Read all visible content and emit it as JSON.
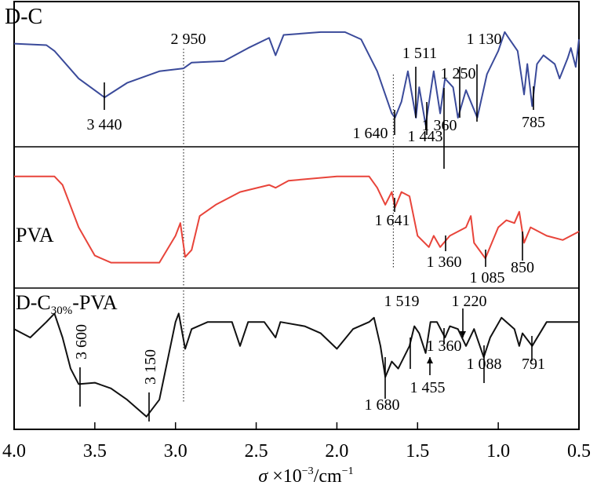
{
  "chart_data": {
    "type": "line",
    "title": "",
    "xlabel": "σ ×10⁻³/cm⁻¹",
    "xlabel_parts": {
      "symbol": "σ",
      "mult": "×10",
      "exp": "−3",
      "unit": "/cm",
      "unit_exp": "−1"
    },
    "ylabel": "",
    "xlim": [
      4.0,
      0.5
    ],
    "xticks": [
      "4.0",
      "3.5",
      "3.0",
      "2.5",
      "2.0",
      "1.5",
      "1.0",
      "0.5"
    ],
    "xtick_values": [
      4.0,
      3.5,
      3.0,
      2.5,
      2.0,
      1.5,
      1.0,
      0.5
    ],
    "ylim": [
      0,
      100
    ],
    "panels": [
      {
        "name": "D-C",
        "label": "D-C",
        "color": "#3a4a9a",
        "x": [
          4.0,
          3.8,
          3.75,
          3.6,
          3.44,
          3.3,
          3.1,
          2.95,
          2.9,
          2.7,
          2.55,
          2.42,
          2.38,
          2.33,
          2.1,
          1.95,
          1.85,
          1.75,
          1.66,
          1.64,
          1.6,
          1.56,
          1.51,
          1.49,
          1.45,
          1.4,
          1.36,
          1.33,
          1.28,
          1.25,
          1.2,
          1.13,
          1.07,
          1.0,
          0.96,
          0.93,
          0.88,
          0.84,
          0.82,
          0.79,
          0.76,
          0.72,
          0.65,
          0.62,
          0.57,
          0.55,
          0.52,
          0.5
        ],
        "y": [
          71,
          70,
          66,
          47,
          34,
          44,
          52,
          54,
          58,
          59,
          68,
          75,
          63,
          77,
          79,
          79,
          74,
          52,
          23,
          20,
          31,
          52,
          20,
          41,
          15,
          52,
          23,
          47,
          41,
          20,
          39,
          20,
          50,
          66,
          79,
          74,
          66,
          36,
          57,
          28,
          57,
          63,
          57,
          47,
          61,
          68,
          55,
          74
        ]
      },
      {
        "name": "PVA",
        "label": "PVA",
        "color": "#e8443a",
        "x": [
          4.0,
          3.75,
          3.7,
          3.6,
          3.5,
          3.4,
          3.1,
          3.0,
          2.97,
          2.94,
          2.9,
          2.85,
          2.75,
          2.6,
          2.42,
          2.38,
          2.3,
          2.0,
          1.8,
          1.75,
          1.7,
          1.66,
          1.64,
          1.6,
          1.55,
          1.5,
          1.43,
          1.4,
          1.36,
          1.3,
          1.2,
          1.17,
          1.15,
          1.08,
          1.0,
          0.95,
          0.9,
          0.87,
          0.84,
          0.8,
          0.7,
          0.6,
          0.5
        ],
        "y": [
          79,
          79,
          73,
          43,
          23,
          18,
          18,
          37,
          46,
          22,
          27,
          51,
          59,
          68,
          73,
          71,
          76,
          79,
          79,
          71,
          59,
          68,
          57,
          68,
          65,
          37,
          29,
          37,
          29,
          37,
          43,
          51,
          32,
          21,
          43,
          48,
          46,
          54,
          32,
          43,
          37,
          34,
          40
        ]
      },
      {
        "name": "D-C30%-PVA",
        "label": "D-C",
        "label_sub": "30%",
        "label_tail": "-PVA",
        "color": "#111111",
        "x": [
          4.0,
          3.9,
          3.8,
          3.75,
          3.7,
          3.65,
          3.6,
          3.5,
          3.4,
          3.3,
          3.18,
          3.1,
          3.0,
          2.98,
          2.94,
          2.9,
          2.8,
          2.7,
          2.65,
          2.6,
          2.55,
          2.45,
          2.38,
          2.35,
          2.2,
          2.1,
          2.0,
          1.9,
          1.8,
          1.77,
          1.73,
          1.7,
          1.66,
          1.62,
          1.55,
          1.52,
          1.49,
          1.45,
          1.42,
          1.38,
          1.33,
          1.3,
          1.25,
          1.2,
          1.15,
          1.09,
          1.05,
          0.98,
          0.9,
          0.87,
          0.85,
          0.79,
          0.7,
          0.5
        ],
        "y": [
          71,
          65,
          76,
          82,
          65,
          43,
          32,
          33,
          29,
          21,
          9,
          21,
          76,
          82,
          57,
          71,
          76,
          76,
          76,
          59,
          76,
          76,
          65,
          76,
          73,
          68,
          57,
          71,
          76,
          79,
          59,
          37,
          48,
          43,
          59,
          73,
          68,
          54,
          76,
          76,
          65,
          73,
          71,
          59,
          71,
          51,
          65,
          79,
          71,
          59,
          68,
          59,
          76,
          76
        ]
      }
    ],
    "annotations": [
      {
        "panel": 0,
        "label": "3 440"
      },
      {
        "panel": 0,
        "label": "2 950"
      },
      {
        "panel": 0,
        "label": "1 640"
      },
      {
        "panel": 0,
        "label": "1 511"
      },
      {
        "panel": 0,
        "label": "1 443"
      },
      {
        "panel": 0,
        "label": "1 360"
      },
      {
        "panel": 0,
        "label": "1 250"
      },
      {
        "panel": 0,
        "label": "1 130"
      },
      {
        "panel": 0,
        "label": "785"
      },
      {
        "panel": 1,
        "label": "1 641"
      },
      {
        "panel": 1,
        "label": "1 360"
      },
      {
        "panel": 1,
        "label": "1 085"
      },
      {
        "panel": 1,
        "label": "850"
      },
      {
        "panel": 2,
        "label": "3 600"
      },
      {
        "panel": 2,
        "label": "3 150"
      },
      {
        "panel": 2,
        "label": "1 680"
      },
      {
        "panel": 2,
        "label": "1 519"
      },
      {
        "panel": 2,
        "label": "1 455"
      },
      {
        "panel": 2,
        "label": "1 360"
      },
      {
        "panel": 2,
        "label": "1 220"
      },
      {
        "panel": 2,
        "label": "1 088"
      },
      {
        "panel": 2,
        "label": "791"
      }
    ],
    "reference_lines": [
      2.95,
      1.65
    ]
  }
}
